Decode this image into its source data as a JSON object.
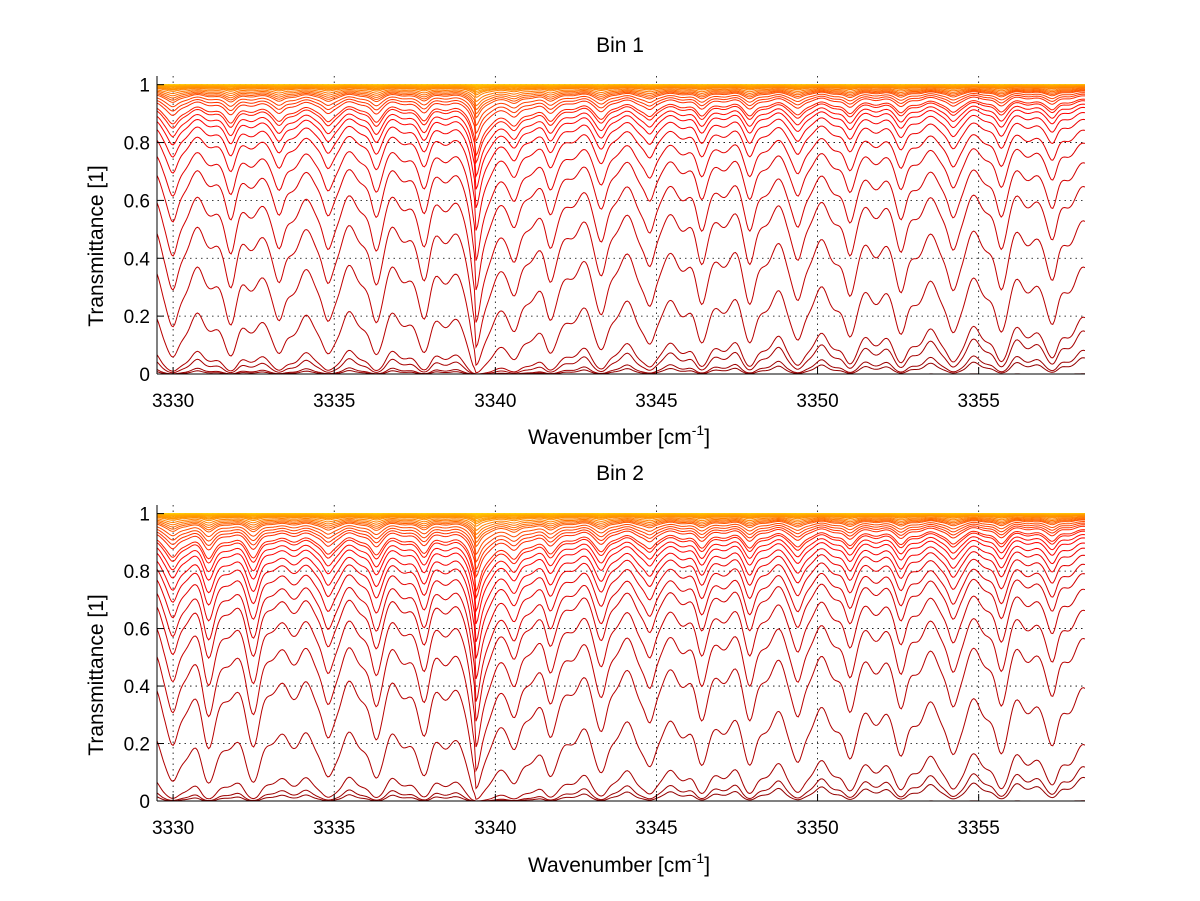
{
  "chart_data": [
    {
      "type": "line",
      "title": "Bin 1",
      "xlabel_main": "Wavenumber [cm",
      "xlabel_sup": "-1",
      "xlabel_close": "]",
      "ylabel": "Transmittance [1]",
      "xlim": [
        3329.5,
        3358.3
      ],
      "ylim": [
        0,
        1.03
      ],
      "xticks": [
        3330,
        3335,
        3340,
        3345,
        3350,
        3355
      ],
      "yticks": [
        0,
        0.2,
        0.4,
        0.6,
        0.8,
        1
      ],
      "ytick_labels": [
        "0",
        "0.2",
        "0.4",
        "0.6",
        "0.8",
        "1"
      ],
      "grid": true,
      "series_count": 40,
      "baseline_end_values": [
        0.0,
        0.005,
        0.01,
        0.03,
        0.05,
        0.16,
        0.31,
        0.45,
        0.56,
        0.66,
        0.73,
        0.79,
        0.83,
        0.86,
        0.88,
        0.9,
        0.91,
        0.93,
        0.94,
        0.95,
        0.96,
        0.965,
        0.97,
        0.975,
        0.98,
        0.985,
        0.988,
        0.99,
        0.992,
        0.994,
        0.995,
        0.996,
        0.997,
        0.998,
        0.998,
        0.999,
        0.999,
        1.0,
        1.0,
        1.0
      ],
      "absorption_lines": [
        3330.0,
        3331.8,
        3333.3,
        3334.8,
        3336.3,
        3337.8,
        3339.4,
        3340.6,
        3341.7,
        3343.3,
        3344.8,
        3346.4,
        3347.9,
        3349.4,
        3351.0,
        3352.6,
        3354.2,
        3355.7,
        3357.3
      ],
      "colors": [
        "#8b0000",
        "#ff0000",
        "#ff8c00",
        "#ffd700"
      ]
    },
    {
      "type": "line",
      "title": "Bin 2",
      "xlabel_main": "Wavenumber [cm",
      "xlabel_sup": "-1",
      "xlabel_close": "]",
      "ylabel": "Transmittance [1]",
      "xlim": [
        3329.5,
        3358.3
      ],
      "ylim": [
        0,
        1.03
      ],
      "xticks": [
        3330,
        3335,
        3340,
        3345,
        3350,
        3355
      ],
      "yticks": [
        0,
        0.2,
        0.4,
        0.6,
        0.8,
        1
      ],
      "ytick_labels": [
        "0",
        "0.2",
        "0.4",
        "0.6",
        "0.8",
        "1"
      ],
      "grid": true,
      "series_count": 40,
      "baseline_end_values": [
        0.0,
        0.01,
        0.02,
        0.05,
        0.18,
        0.35,
        0.47,
        0.57,
        0.65,
        0.7,
        0.75,
        0.79,
        0.82,
        0.85,
        0.87,
        0.89,
        0.9,
        0.92,
        0.93,
        0.94,
        0.95,
        0.96,
        0.965,
        0.97,
        0.975,
        0.98,
        0.985,
        0.988,
        0.99,
        0.992,
        0.994,
        0.995,
        0.996,
        0.997,
        0.998,
        0.998,
        0.999,
        0.999,
        1.0,
        1.0
      ],
      "absorption_lines": [
        3330.0,
        3331.1,
        3332.5,
        3334.8,
        3336.3,
        3337.8,
        3339.4,
        3340.6,
        3341.7,
        3343.3,
        3344.8,
        3346.4,
        3347.9,
        3349.4,
        3351.0,
        3352.6,
        3354.2,
        3355.7,
        3357.3
      ],
      "colors": [
        "#8b0000",
        "#ff0000",
        "#ff8c00",
        "#ffd700"
      ]
    }
  ]
}
